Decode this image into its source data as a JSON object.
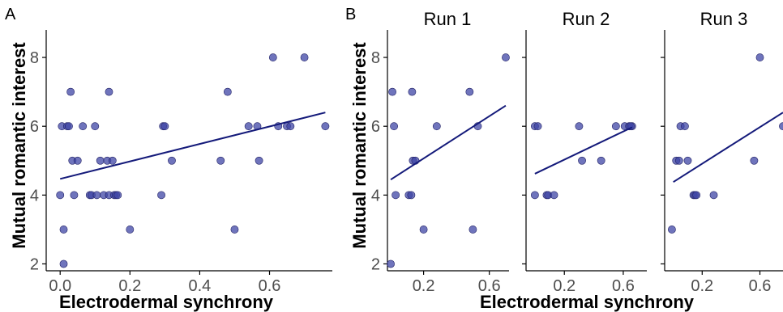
{
  "colors": {
    "point": "#3f46a6",
    "line": "#141a7a"
  },
  "chart_data": [
    {
      "type": "scatter",
      "panel_label": "A",
      "title": "",
      "xlabel": "Electrodermal synchrony",
      "ylabel": "Mutual romantic interest",
      "xlim": [
        -0.04,
        0.78
      ],
      "ylim": [
        1.8,
        8.8
      ],
      "xticks": [
        "0.0",
        "0.2",
        "0.4",
        "0.6"
      ],
      "xtick_values": [
        0.0,
        0.2,
        0.4,
        0.6
      ],
      "yticks": [
        "2",
        "4",
        "6",
        "8"
      ],
      "ytick_values": [
        2,
        4,
        6,
        8
      ],
      "fit": {
        "x": [
          0.0,
          0.76
        ],
        "y": [
          4.47,
          6.4
        ]
      },
      "points": [
        [
          0.0,
          4
        ],
        [
          0.005,
          6
        ],
        [
          0.01,
          2
        ],
        [
          0.01,
          3
        ],
        [
          0.02,
          6
        ],
        [
          0.025,
          6
        ],
        [
          0.03,
          7
        ],
        [
          0.035,
          5
        ],
        [
          0.04,
          4
        ],
        [
          0.05,
          5
        ],
        [
          0.065,
          6
        ],
        [
          0.085,
          4
        ],
        [
          0.09,
          4
        ],
        [
          0.1,
          6
        ],
        [
          0.105,
          4
        ],
        [
          0.115,
          5
        ],
        [
          0.125,
          4
        ],
        [
          0.135,
          5
        ],
        [
          0.14,
          7
        ],
        [
          0.14,
          4
        ],
        [
          0.15,
          5
        ],
        [
          0.155,
          4
        ],
        [
          0.16,
          4
        ],
        [
          0.165,
          4
        ],
        [
          0.2,
          3
        ],
        [
          0.29,
          4
        ],
        [
          0.295,
          6
        ],
        [
          0.3,
          6
        ],
        [
          0.32,
          5
        ],
        [
          0.46,
          5
        ],
        [
          0.48,
          7
        ],
        [
          0.5,
          3
        ],
        [
          0.54,
          6
        ],
        [
          0.565,
          6
        ],
        [
          0.57,
          5
        ],
        [
          0.61,
          8
        ],
        [
          0.625,
          6
        ],
        [
          0.65,
          6
        ],
        [
          0.66,
          6
        ],
        [
          0.7,
          8
        ],
        [
          0.76,
          6
        ]
      ]
    },
    {
      "type": "scatter",
      "panel_label": "B",
      "title": "Run 1",
      "xlabel": "",
      "ylabel": "Mutual romantic interest",
      "xlim": [
        -0.02,
        0.72
      ],
      "ylim": [
        1.8,
        8.8
      ],
      "xticks": [
        "0.2",
        "0.6"
      ],
      "xtick_values": [
        0.2,
        0.6
      ],
      "yticks": [
        "2",
        "4",
        "6",
        "8"
      ],
      "ytick_values": [
        2,
        4,
        6,
        8
      ],
      "fit": {
        "x": [
          0.0,
          0.7
        ],
        "y": [
          4.45,
          6.6
        ]
      },
      "points": [
        [
          0.0,
          2
        ],
        [
          0.01,
          7
        ],
        [
          0.02,
          6
        ],
        [
          0.03,
          4
        ],
        [
          0.11,
          4
        ],
        [
          0.125,
          4
        ],
        [
          0.13,
          7
        ],
        [
          0.135,
          5
        ],
        [
          0.15,
          5
        ],
        [
          0.2,
          3
        ],
        [
          0.28,
          6
        ],
        [
          0.48,
          7
        ],
        [
          0.5,
          3
        ],
        [
          0.53,
          6
        ],
        [
          0.7,
          8
        ]
      ]
    },
    {
      "type": "scatter",
      "panel_label": "",
      "title": "Run 2",
      "xlabel": "",
      "ylabel": "",
      "xlim": [
        -0.06,
        0.76
      ],
      "ylim": [
        1.8,
        8.8
      ],
      "xticks": [
        "0.2",
        "0.6"
      ],
      "xtick_values": [
        0.2,
        0.6
      ],
      "yticks": [],
      "ytick_values": [
        2,
        4,
        6,
        8
      ],
      "fit": {
        "x": [
          0.0,
          0.66
        ],
        "y": [
          4.62,
          5.97
        ]
      },
      "points": [
        [
          0.0,
          4
        ],
        [
          0.0,
          6
        ],
        [
          0.02,
          6
        ],
        [
          0.08,
          4
        ],
        [
          0.09,
          4
        ],
        [
          0.13,
          4
        ],
        [
          0.3,
          6
        ],
        [
          0.32,
          5
        ],
        [
          0.45,
          5
        ],
        [
          0.55,
          6
        ],
        [
          0.61,
          6
        ],
        [
          0.64,
          6
        ],
        [
          0.66,
          6
        ],
        [
          0.65,
          6
        ]
      ]
    },
    {
      "type": "scatter",
      "panel_label": "",
      "title": "Run 3",
      "xlabel": "",
      "ylabel": "",
      "xlim": [
        -0.06,
        0.76
      ],
      "ylim": [
        1.8,
        8.8
      ],
      "xticks": [
        "0.2",
        "0.6"
      ],
      "xtick_values": [
        0.2,
        0.6
      ],
      "yticks": [],
      "ytick_values": [
        2,
        4,
        6,
        8
      ],
      "fit": {
        "x": [
          0.0,
          0.76
        ],
        "y": [
          4.38,
          6.4
        ]
      },
      "points": [
        [
          -0.01,
          3
        ],
        [
          0.02,
          5
        ],
        [
          0.04,
          5
        ],
        [
          0.05,
          6
        ],
        [
          0.08,
          6
        ],
        [
          0.1,
          5
        ],
        [
          0.14,
          4
        ],
        [
          0.15,
          4
        ],
        [
          0.16,
          4
        ],
        [
          0.28,
          4
        ],
        [
          0.56,
          5
        ],
        [
          0.6,
          8
        ],
        [
          0.76,
          6
        ]
      ]
    }
  ],
  "shared": {
    "xlabel_B": "Electrodermal synchrony"
  }
}
